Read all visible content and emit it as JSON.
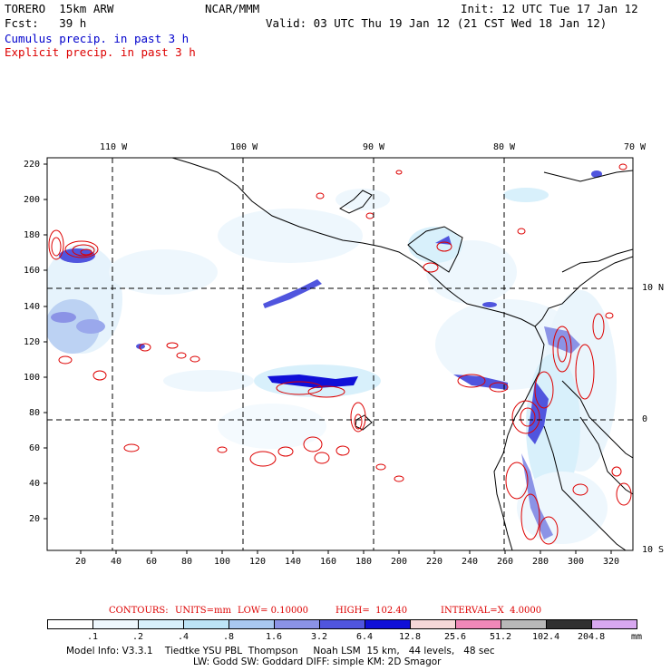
{
  "header": {
    "model": "TORERO  15km ARW",
    "org": "NCAR/MMM",
    "init": "Init: 12 UTC Tue 17 Jan 12",
    "fcst": "Fcst:   39 h",
    "valid": "Valid: 03 UTC Thu 19 Jan 12 (21 CST Wed 18 Jan 12)",
    "line_cumulus": "Cumulus precip. in past 3 h",
    "line_explicit": "Explicit precip. in past 3 h"
  },
  "lon_labels": [
    "110 W",
    "100 W",
    "90 W",
    "80 W",
    "70 W"
  ],
  "lat_labels": [
    "10 N",
    "0",
    "10 S"
  ],
  "y_ticks": [
    "220",
    "200",
    "180",
    "160",
    "140",
    "120",
    "100",
    "80",
    "60",
    "40",
    "20"
  ],
  "x_ticks": [
    "20",
    "40",
    "60",
    "80",
    "100",
    "120",
    "140",
    "160",
    "180",
    "200",
    "220",
    "240",
    "260",
    "280",
    "300",
    "320"
  ],
  "contours_line": {
    "contours": "CONTOURS:",
    "units": "UNITS=mm",
    "low": "LOW= 0.10000",
    "high": "HIGH=  102.40",
    "interval": "INTERVAL=X  4.0000"
  },
  "colorbar": {
    "colors": [
      "#ffffff",
      "#eef7fd",
      "#d8f0fb",
      "#bde4f6",
      "#a9c8f0",
      "#8b93e6",
      "#5055de",
      "#1010d8",
      "#f6d8d8",
      "#f088b8",
      "#b8b8b8",
      "#303030",
      "#d8a8f0"
    ],
    "labels": [
      ".1",
      ".2",
      ".4",
      ".8",
      "1.6",
      "3.2",
      "6.4",
      "12.8",
      "25.6",
      "51.2",
      "102.4",
      "204.8"
    ],
    "unit": "mm"
  },
  "footer": {
    "line1": "Model Info: V3.3.1    Tiedtke YSU PBL  Thompson     Noah LSM  15 km,   44 levels,   48 sec",
    "line2": "LW: Godd SW: Goddard DIFF: simple KM: 2D Smagor"
  }
}
